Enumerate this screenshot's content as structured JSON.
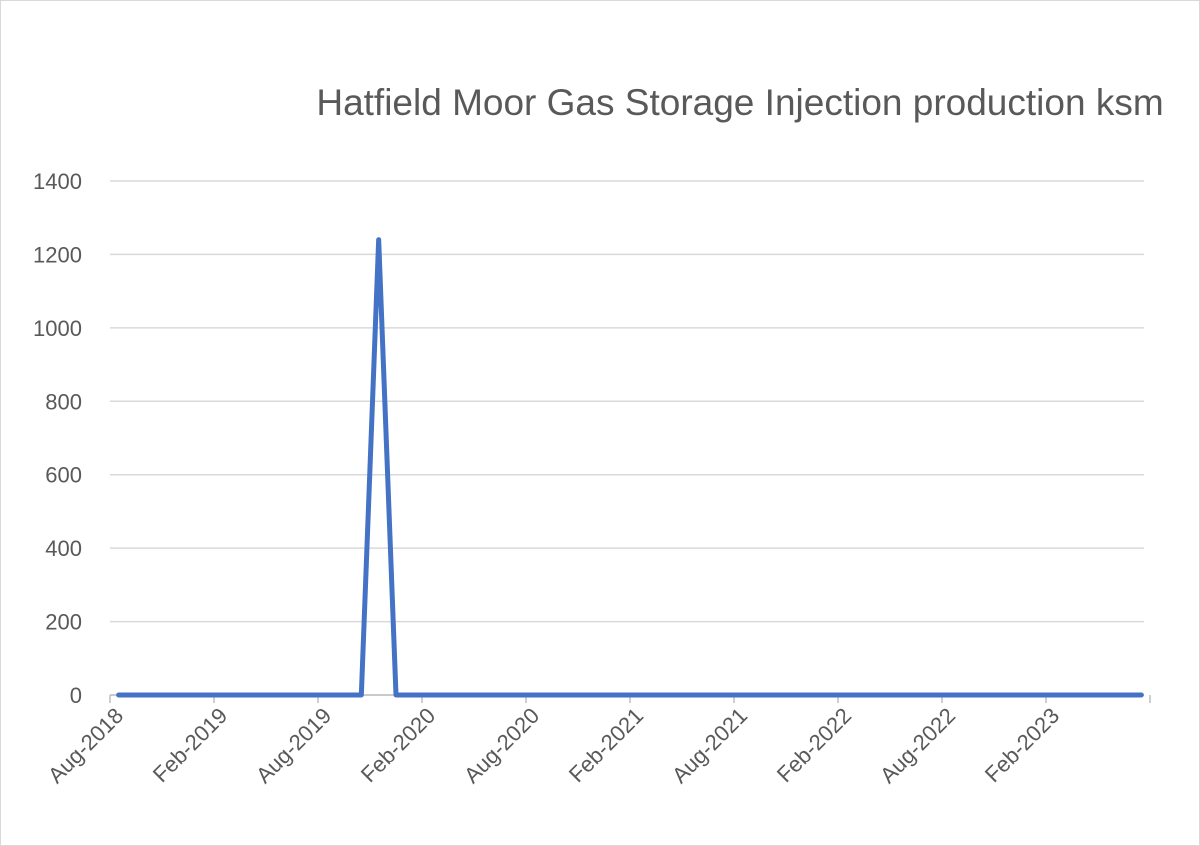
{
  "chart_data": {
    "type": "line",
    "title": "Hatfield Moor Gas Storage Injection production ksm",
    "categories": [
      "Aug-2018",
      null,
      null,
      null,
      null,
      null,
      "Feb-2019",
      null,
      null,
      null,
      null,
      null,
      "Aug-2019",
      null,
      null,
      null,
      null,
      null,
      "Feb-2020",
      null,
      null,
      null,
      null,
      null,
      "Aug-2020",
      null,
      null,
      null,
      null,
      null,
      "Feb-2021",
      null,
      null,
      null,
      null,
      null,
      "Aug-2021",
      null,
      null,
      null,
      null,
      null,
      "Feb-2022",
      null,
      null,
      null,
      null,
      null,
      "Aug-2022",
      null,
      null,
      null,
      null,
      null,
      "Feb-2023",
      null,
      null,
      null,
      null,
      null
    ],
    "values": [
      0,
      0,
      0,
      0,
      0,
      0,
      0,
      0,
      0,
      0,
      0,
      0,
      0,
      0,
      0,
      1240,
      0,
      0,
      0,
      0,
      0,
      0,
      0,
      0,
      0,
      0,
      0,
      0,
      0,
      0,
      0,
      0,
      0,
      0,
      0,
      0,
      0,
      0,
      0,
      0,
      0,
      0,
      0,
      0,
      0,
      0,
      0,
      0,
      0,
      0,
      0,
      0,
      0,
      0,
      0,
      0,
      0,
      0,
      0,
      0
    ],
    "color": "#4472c4",
    "ylim": [
      0,
      1400
    ],
    "yticks": [
      0,
      200,
      400,
      600,
      800,
      1000,
      1200,
      1400
    ],
    "grid": true
  }
}
